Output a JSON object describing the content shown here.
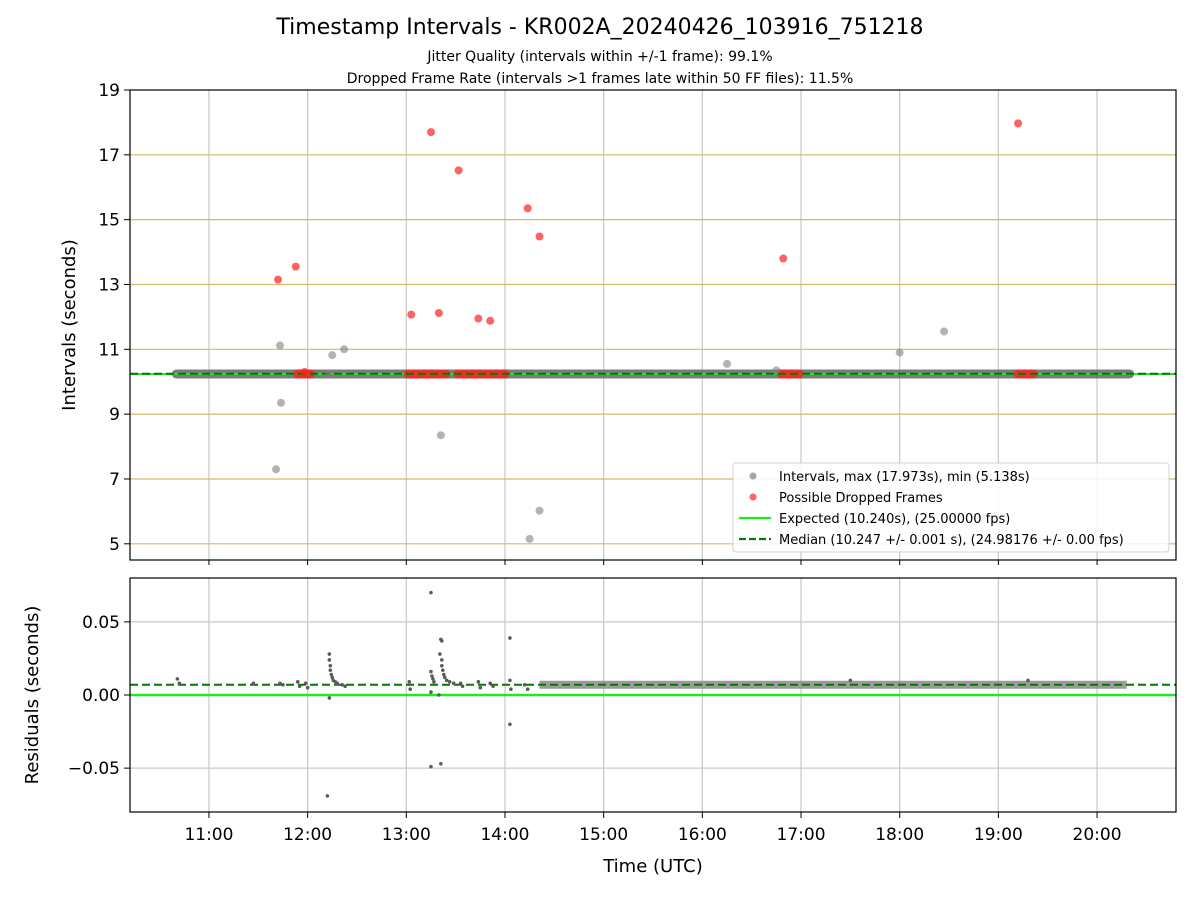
{
  "title": "Timestamp Intervals - KR002A_20240426_103916_751218",
  "subtitle_1": "Jitter Quality (intervals within +/-1 frame): 99.1%",
  "subtitle_2": "Dropped Frame Rate (intervals >1 frames late within 50 FF files): 11.5%",
  "colors": {
    "intervals": "#808080",
    "dropped": "#ff2020",
    "expected": "#1aee1a",
    "median": "#007a00",
    "hgrid_top": "#d4b96a",
    "grid": "#c8c8c8"
  },
  "chart_data": [
    {
      "type": "scatter",
      "panel": "intervals",
      "xlabel": "",
      "ylabel": "Intervals (seconds)",
      "x_unit": "hours UTC",
      "xlim": [
        10.2,
        20.8
      ],
      "ylim": [
        4.5,
        19
      ],
      "y_ticks": [
        5,
        7,
        9,
        11,
        13,
        15,
        17,
        19
      ],
      "grid": "horizontal dense, vertical at hours",
      "legend_placement": "lower right",
      "series": [
        {
          "name": "Intervals, max (17.973s), min (5.138s)",
          "marker": "circle",
          "baseline": {
            "y": 10.24,
            "x_start": 10.67,
            "x_end": 20.33
          },
          "points": [
            [
              11.68,
              7.3
            ],
            [
              11.72,
              11.12
            ],
            [
              11.73,
              9.35
            ],
            [
              12.22,
              10.25
            ],
            [
              12.25,
              10.82
            ],
            [
              12.37,
              11.0
            ],
            [
              13.35,
              8.35
            ],
            [
              14.25,
              5.15
            ],
            [
              14.35,
              6.02
            ],
            [
              16.25,
              10.55
            ],
            [
              16.75,
              10.35
            ],
            [
              18.0,
              10.9
            ],
            [
              18.45,
              11.55
            ]
          ]
        },
        {
          "name": "Possible Dropped Frames",
          "marker": "circle",
          "clusters_at_baseline": [
            [
              11.9,
              12.03
            ],
            [
              13.02,
              13.4
            ],
            [
              13.52,
              14.0
            ],
            [
              16.8,
              16.98
            ],
            [
              19.2,
              19.35
            ]
          ],
          "points": [
            [
              11.7,
              13.15
            ],
            [
              11.88,
              13.55
            ],
            [
              11.97,
              10.3
            ],
            [
              13.05,
              12.07
            ],
            [
              13.25,
              17.7
            ],
            [
              13.33,
              12.12
            ],
            [
              13.53,
              16.52
            ],
            [
              13.73,
              11.95
            ],
            [
              13.85,
              11.88
            ],
            [
              14.23,
              15.35
            ],
            [
              14.35,
              14.48
            ],
            [
              16.82,
              13.8
            ],
            [
              19.2,
              17.97
            ]
          ]
        },
        {
          "name": "Expected (10.240s), (25.00000 fps)",
          "style": "solid line",
          "y": 10.24
        },
        {
          "name": "Median (10.247 +/- 0.001 s), (24.98176 +/- 0.00 fps)",
          "style": "dashed line",
          "y": 10.247
        }
      ]
    },
    {
      "type": "scatter",
      "panel": "residuals",
      "xlabel": "Time (UTC)",
      "ylabel": "Residuals (seconds)",
      "xlim": [
        10.2,
        20.8
      ],
      "ylim": [
        -0.08,
        0.08
      ],
      "x_ticks": [
        "11:00",
        "12:00",
        "13:00",
        "14:00",
        "15:00",
        "16:00",
        "17:00",
        "18:00",
        "19:00",
        "20:00"
      ],
      "x_tick_values": [
        11,
        12,
        13,
        14,
        15,
        16,
        17,
        18,
        19,
        20
      ],
      "y_ticks": [
        "0.05",
        "0.00",
        "−0.05"
      ],
      "y_tick_values": [
        0.05,
        0.0,
        -0.05
      ],
      "series": [
        {
          "name": "residuals",
          "band": {
            "y": 0.007,
            "x_start": 14.35,
            "x_end": 20.3
          },
          "points": [
            [
              10.68,
              0.011
            ],
            [
              10.7,
              0.008
            ],
            [
              11.45,
              0.008
            ],
            [
              11.72,
              0.008
            ],
            [
              11.75,
              0.007
            ],
            [
              11.9,
              0.009
            ],
            [
              11.92,
              0.006
            ],
            [
              11.98,
              0.008
            ],
            [
              12.0,
              0.005
            ],
            [
              12.22,
              0.028
            ],
            [
              12.22,
              0.024
            ],
            [
              12.23,
              0.02
            ],
            [
              12.23,
              0.017
            ],
            [
              12.24,
              0.014
            ],
            [
              12.25,
              0.012
            ],
            [
              12.26,
              0.01
            ],
            [
              12.28,
              0.009
            ],
            [
              12.3,
              0.008
            ],
            [
              12.22,
              -0.002
            ],
            [
              12.2,
              -0.069
            ],
            [
              12.35,
              0.007
            ],
            [
              12.38,
              0.006
            ],
            [
              13.03,
              0.009
            ],
            [
              13.04,
              0.004
            ],
            [
              13.25,
              0.07
            ],
            [
              13.25,
              0.016
            ],
            [
              13.26,
              0.013
            ],
            [
              13.27,
              0.011
            ],
            [
              13.28,
              0.009
            ],
            [
              13.25,
              0.002
            ],
            [
              13.25,
              -0.049
            ],
            [
              13.33,
              0.0
            ],
            [
              13.35,
              0.038
            ],
            [
              13.36,
              0.037
            ],
            [
              13.34,
              0.028
            ],
            [
              13.36,
              0.024
            ],
            [
              13.36,
              0.02
            ],
            [
              13.37,
              0.017
            ],
            [
              13.38,
              0.014
            ],
            [
              13.39,
              0.012
            ],
            [
              13.41,
              0.01
            ],
            [
              13.44,
              0.009
            ],
            [
              13.48,
              0.008
            ],
            [
              13.35,
              -0.047
            ],
            [
              13.55,
              0.008
            ],
            [
              13.57,
              0.006
            ],
            [
              13.73,
              0.009
            ],
            [
              13.75,
              0.005
            ],
            [
              13.85,
              0.008
            ],
            [
              13.88,
              0.006
            ],
            [
              14.05,
              0.039
            ],
            [
              14.05,
              0.01
            ],
            [
              14.06,
              0.004
            ],
            [
              14.05,
              -0.02
            ],
            [
              14.2,
              0.007
            ],
            [
              14.23,
              0.004
            ],
            [
              17.5,
              0.01
            ],
            [
              19.3,
              0.01
            ]
          ]
        },
        {
          "name": "expected",
          "style": "solid line",
          "y": 0.0
        },
        {
          "name": "median",
          "style": "dashed line",
          "y": 0.007
        }
      ]
    }
  ]
}
